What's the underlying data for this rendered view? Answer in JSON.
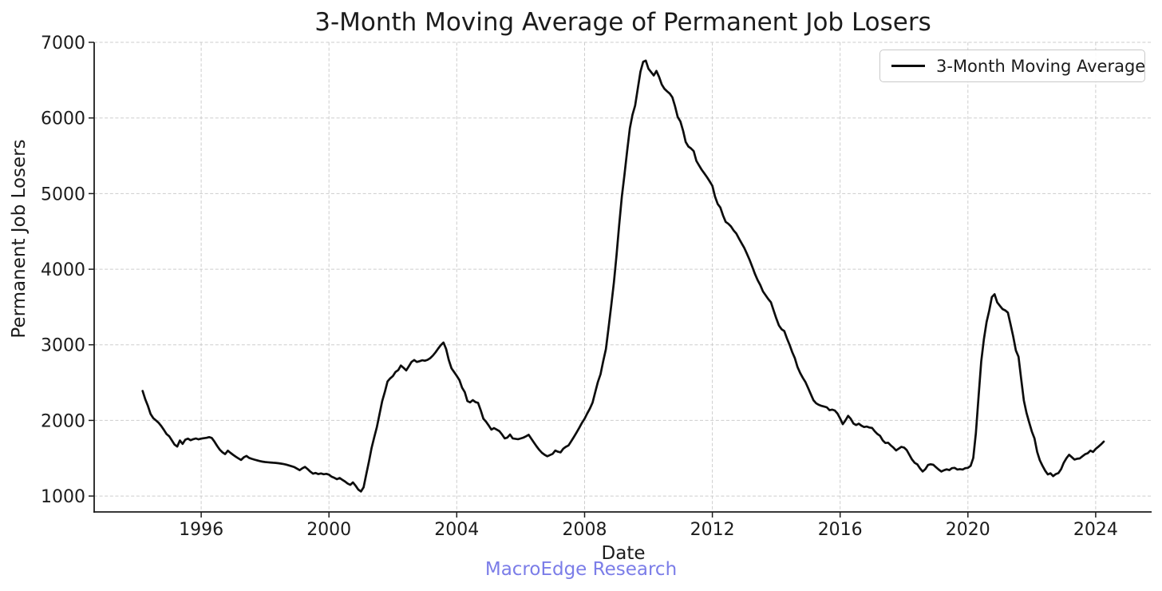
{
  "chart_data": {
    "type": "line",
    "title": "3-Month Moving Average of Permanent Job Losers",
    "xlabel": "Date",
    "ylabel": "Permanent Job Losers",
    "watermark": "MacroEdge Research",
    "legend": {
      "position": "upper-right",
      "entries": [
        "3-Month Moving Average"
      ]
    },
    "grid": true,
    "grid_style": "dashed",
    "x_ticks": [
      1996,
      2000,
      2004,
      2008,
      2012,
      2016,
      2020,
      2024
    ],
    "y_ticks": [
      1000,
      2000,
      3000,
      4000,
      5000,
      6000,
      7000
    ],
    "xlim": [
      1992.65,
      2025.75
    ],
    "ylim": [
      790,
      7000
    ],
    "colors": {
      "line": "#0d0d0d",
      "grid": "#cdcdcd",
      "text": "#1c1c1c",
      "watermark": "#7b7de8",
      "background": "#ffffff"
    },
    "series": [
      {
        "name": "3-Month Moving Average",
        "x_unit": "decimal_year",
        "x_start": 1994.1667,
        "x_step": 0.0833333,
        "values": [
          2390,
          2280,
          2190,
          2085,
          2030,
          2000,
          1970,
          1925,
          1875,
          1820,
          1790,
          1735,
          1680,
          1655,
          1735,
          1690,
          1745,
          1760,
          1738,
          1752,
          1762,
          1750,
          1760,
          1765,
          1770,
          1780,
          1768,
          1718,
          1662,
          1612,
          1578,
          1555,
          1600,
          1572,
          1545,
          1520,
          1498,
          1478,
          1512,
          1530,
          1505,
          1492,
          1482,
          1472,
          1463,
          1455,
          1450,
          1447,
          1444,
          1441,
          1438,
          1434,
          1429,
          1423,
          1415,
          1405,
          1394,
          1382,
          1362,
          1342,
          1368,
          1386,
          1356,
          1322,
          1296,
          1305,
          1291,
          1299,
          1288,
          1294,
          1283,
          1256,
          1241,
          1223,
          1239,
          1216,
          1193,
          1166,
          1148,
          1181,
          1136,
          1086,
          1060,
          1116,
          1286,
          1456,
          1636,
          1776,
          1916,
          2086,
          2256,
          2381,
          2516,
          2556,
          2586,
          2641,
          2666,
          2726,
          2696,
          2661,
          2716,
          2773,
          2799,
          2773,
          2783,
          2796,
          2789,
          2801,
          2823,
          2857,
          2900,
          2950,
          2995,
          3030,
          2945,
          2800,
          2690,
          2640,
          2590,
          2533,
          2433,
          2373,
          2256,
          2239,
          2269,
          2243,
          2233,
          2133,
          2023,
          1983,
          1933,
          1879,
          1899,
          1879,
          1859,
          1813,
          1763,
          1773,
          1813,
          1763,
          1757,
          1752,
          1762,
          1772,
          1790,
          1810,
          1758,
          1706,
          1656,
          1610,
          1572,
          1546,
          1526,
          1542,
          1558,
          1602,
          1586,
          1578,
          1626,
          1652,
          1670,
          1726,
          1782,
          1842,
          1902,
          1966,
          2022,
          2092,
          2156,
          2236,
          2372,
          2506,
          2612,
          2782,
          2942,
          3222,
          3512,
          3822,
          4182,
          4582,
          4962,
          5252,
          5562,
          5862,
          6042,
          6162,
          6392,
          6612,
          6742,
          6758,
          6652,
          6606,
          6562,
          6622,
          6542,
          6442,
          6386,
          6352,
          6322,
          6272,
          6152,
          6012,
          5952,
          5832,
          5682,
          5622,
          5596,
          5562,
          5432,
          5372,
          5316,
          5266,
          5216,
          5162,
          5102,
          4962,
          4862,
          4816,
          4712,
          4626,
          4600,
          4566,
          4512,
          4472,
          4406,
          4342,
          4282,
          4202,
          4122,
          4032,
          3936,
          3856,
          3792,
          3706,
          3656,
          3606,
          3562,
          3456,
          3352,
          3256,
          3206,
          3182,
          3086,
          3002,
          2902,
          2822,
          2706,
          2626,
          2562,
          2506,
          2426,
          2346,
          2266,
          2226,
          2206,
          2193,
          2183,
          2173,
          2136,
          2143,
          2131,
          2091,
          2026,
          1951,
          2001,
          2061,
          2021,
          1959,
          1939,
          1957,
          1931,
          1913,
          1919,
          1906,
          1901,
          1856,
          1821,
          1796,
          1736,
          1701,
          1706,
          1671,
          1641,
          1603,
          1626,
          1651,
          1641,
          1609,
          1546,
          1483,
          1439,
          1419,
          1366,
          1324,
          1356,
          1411,
          1421,
          1413,
          1381,
          1351,
          1324,
          1341,
          1353,
          1343,
          1369,
          1373,
          1351,
          1356,
          1351,
          1369,
          1373,
          1399,
          1503,
          1833,
          2321,
          2781,
          3071,
          3301,
          3451,
          3631,
          3669,
          3561,
          3516,
          3473,
          3456,
          3426,
          3273,
          3113,
          2926,
          2843,
          2553,
          2263,
          2101,
          1973,
          1853,
          1763,
          1583,
          1473,
          1401,
          1336,
          1286,
          1301,
          1263,
          1291,
          1303,
          1356,
          1441,
          1501,
          1546,
          1516,
          1483,
          1493,
          1498,
          1526,
          1553,
          1566,
          1601,
          1583,
          1623,
          1653,
          1683,
          1720
        ]
      }
    ]
  }
}
